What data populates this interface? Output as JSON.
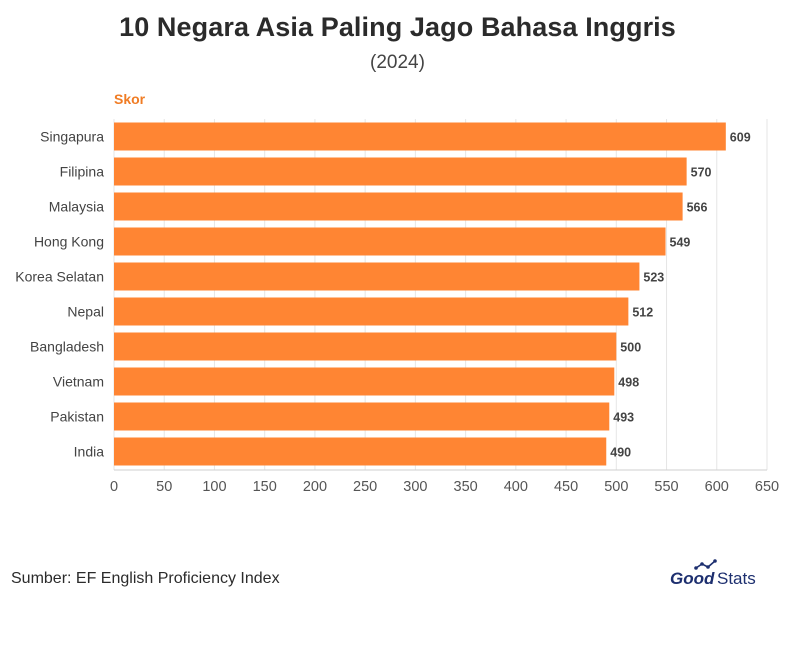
{
  "header": {
    "title": "10 Negara Asia Paling Jago Bahasa Inggris",
    "subtitle": "(2024)"
  },
  "footer": {
    "source": "Sumber: EF English Proficiency Index",
    "logo_text_1": "Good",
    "logo_text_2": "Stats"
  },
  "colors": {
    "bar": "#ff8533",
    "axis_title": "#f07c24",
    "logo_dark": "#1d2f6f"
  },
  "chart_data": {
    "type": "bar",
    "orientation": "horizontal",
    "title": "10 Negara Asia Paling Jago Bahasa Inggris",
    "subtitle": "(2024)",
    "xlabel": "Skor",
    "categories": [
      "Singapura",
      "Filipina",
      "Malaysia",
      "Hong Kong",
      "Korea Selatan",
      "Nepal",
      "Bangladesh",
      "Vietnam",
      "Pakistan",
      "India"
    ],
    "values": [
      609,
      570,
      566,
      549,
      523,
      512,
      500,
      498,
      493,
      490
    ],
    "xlim": [
      0,
      650
    ],
    "xticks": [
      0,
      50,
      100,
      150,
      200,
      250,
      300,
      350,
      400,
      450,
      500,
      550,
      600,
      650
    ],
    "grid": true,
    "data_labels": true
  }
}
